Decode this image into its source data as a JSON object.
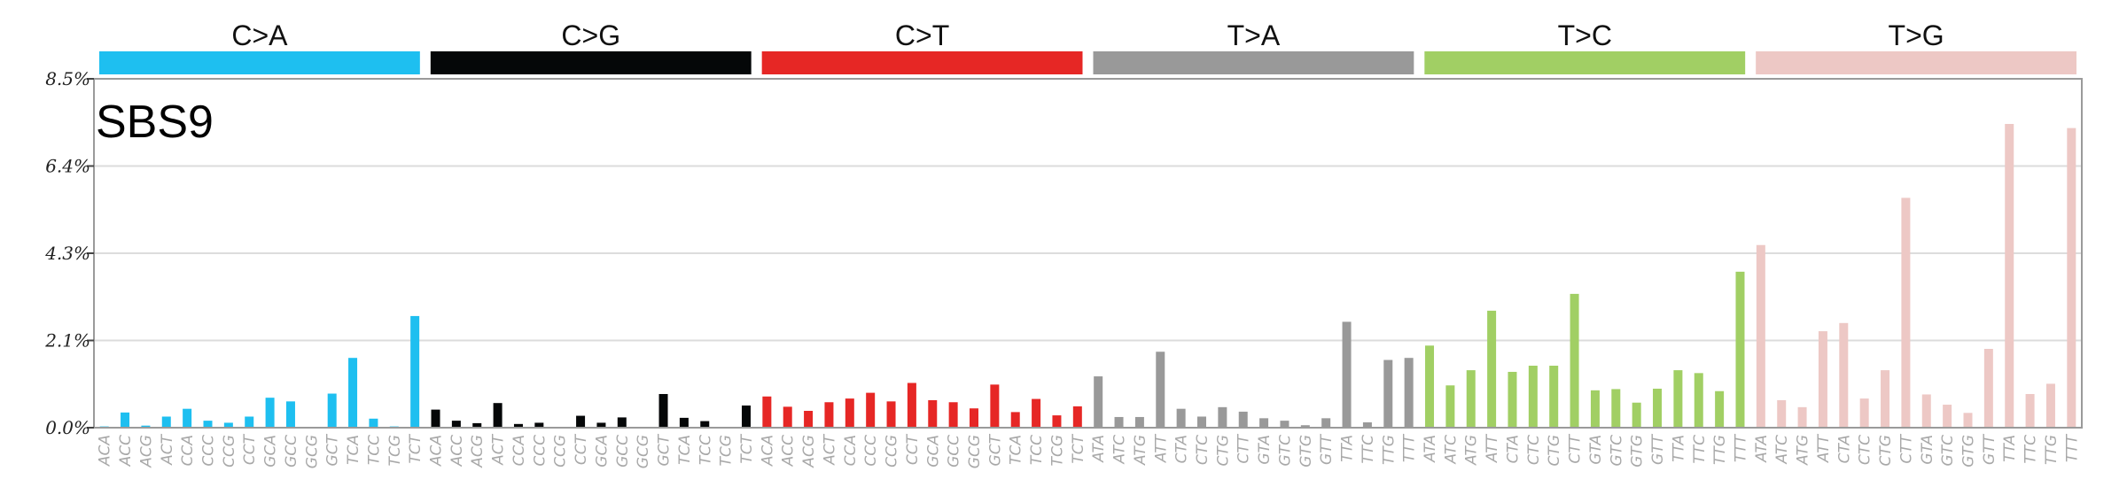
{
  "chart_data": {
    "type": "bar",
    "title": "SBS9",
    "ylim": [
      0,
      8.5
    ],
    "y_ticks": [
      "0.0%",
      "2.1%",
      "4.3%",
      "6.4%",
      "8.5%"
    ],
    "y_tick_values": [
      0,
      2.125,
      4.25,
      6.375,
      8.5
    ],
    "grid": true,
    "groups": [
      {
        "label": "C>A",
        "color": "#1ebff0",
        "contexts": [
          "ACA",
          "ACC",
          "ACG",
          "ACT",
          "CCA",
          "CCC",
          "CCG",
          "CCT",
          "GCA",
          "GCC",
          "GCG",
          "GCT",
          "TCA",
          "TCC",
          "TCG",
          "TCT"
        ],
        "values": [
          0.03,
          0.37,
          0.05,
          0.27,
          0.46,
          0.17,
          0.12,
          0.27,
          0.73,
          0.64,
          0.02,
          0.83,
          1.7,
          0.22,
          0.03,
          2.72
        ]
      },
      {
        "label": "C>G",
        "color": "#050708",
        "contexts": [
          "ACA",
          "ACC",
          "ACG",
          "ACT",
          "CCA",
          "CCC",
          "CCG",
          "CCT",
          "GCA",
          "GCC",
          "GCG",
          "GCT",
          "TCA",
          "TCC",
          "TCG",
          "TCT"
        ],
        "values": [
          0.44,
          0.17,
          0.11,
          0.6,
          0.09,
          0.12,
          0.02,
          0.29,
          0.12,
          0.25,
          0.02,
          0.82,
          0.24,
          0.16,
          0.02,
          0.54
        ]
      },
      {
        "label": "C>T",
        "color": "#e62725",
        "contexts": [
          "ACA",
          "ACC",
          "ACG",
          "ACT",
          "CCA",
          "CCC",
          "CCG",
          "CCT",
          "GCA",
          "GCC",
          "GCG",
          "GCT",
          "TCA",
          "TCC",
          "TCG",
          "TCT"
        ],
        "values": [
          0.76,
          0.51,
          0.41,
          0.62,
          0.71,
          0.85,
          0.64,
          1.09,
          0.67,
          0.62,
          0.47,
          1.05,
          0.38,
          0.7,
          0.3,
          0.52
        ]
      },
      {
        "label": "T>A",
        "color": "#999999",
        "contexts": [
          "ATA",
          "ATC",
          "ATG",
          "ATT",
          "CTA",
          "CTC",
          "CTG",
          "CTT",
          "GTA",
          "GTC",
          "GTG",
          "GTT",
          "TTA",
          "TTC",
          "TTG",
          "TTT"
        ],
        "values": [
          1.25,
          0.26,
          0.26,
          1.85,
          0.46,
          0.27,
          0.5,
          0.39,
          0.23,
          0.17,
          0.06,
          0.23,
          2.58,
          0.13,
          1.65,
          1.7
        ]
      },
      {
        "label": "T>C",
        "color": "#a1cf64",
        "contexts": [
          "ATA",
          "ATC",
          "ATG",
          "ATT",
          "CTA",
          "CTC",
          "CTG",
          "CTT",
          "GTA",
          "GTC",
          "GTG",
          "GTT",
          "TTA",
          "TTC",
          "TTG",
          "TTT"
        ],
        "values": [
          2.0,
          1.03,
          1.4,
          2.85,
          1.36,
          1.51,
          1.51,
          3.26,
          0.91,
          0.94,
          0.61,
          0.95,
          1.4,
          1.33,
          0.89,
          3.8
        ]
      },
      {
        "label": "T>G",
        "color": "#edc8c5",
        "contexts": [
          "ATA",
          "ATC",
          "ATG",
          "ATT",
          "CTA",
          "CTC",
          "CTG",
          "CTT",
          "GTA",
          "GTC",
          "GTG",
          "GTT",
          "TTA",
          "TTC",
          "TTG",
          "TTT"
        ],
        "values": [
          4.45,
          0.67,
          0.5,
          2.35,
          2.55,
          0.71,
          1.4,
          5.6,
          0.81,
          0.56,
          0.36,
          1.92,
          7.4,
          0.82,
          1.07,
          7.3
        ]
      }
    ]
  }
}
